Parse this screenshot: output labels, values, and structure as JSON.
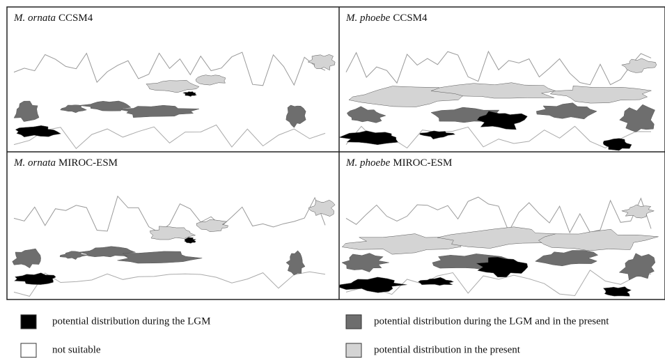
{
  "panels": [
    {
      "species": "M. ornata",
      "model": "CCSM4"
    },
    {
      "species": "M. phoebe",
      "model": "CCSM4"
    },
    {
      "species": "M. ornata",
      "model": "MIROC-ESM"
    },
    {
      "species": "M. phoebe",
      "model": "MIROC-ESM"
    }
  ],
  "legend": [
    {
      "label": "potential distribution during the LGM",
      "color": "#000000"
    },
    {
      "label": "potential distribution during the LGM and in the present",
      "color": "#6e6e6e"
    },
    {
      "label": "not suitable",
      "color": "#ffffff"
    },
    {
      "label": "potential distribution in the present",
      "color": "#d4d4d4"
    }
  ]
}
